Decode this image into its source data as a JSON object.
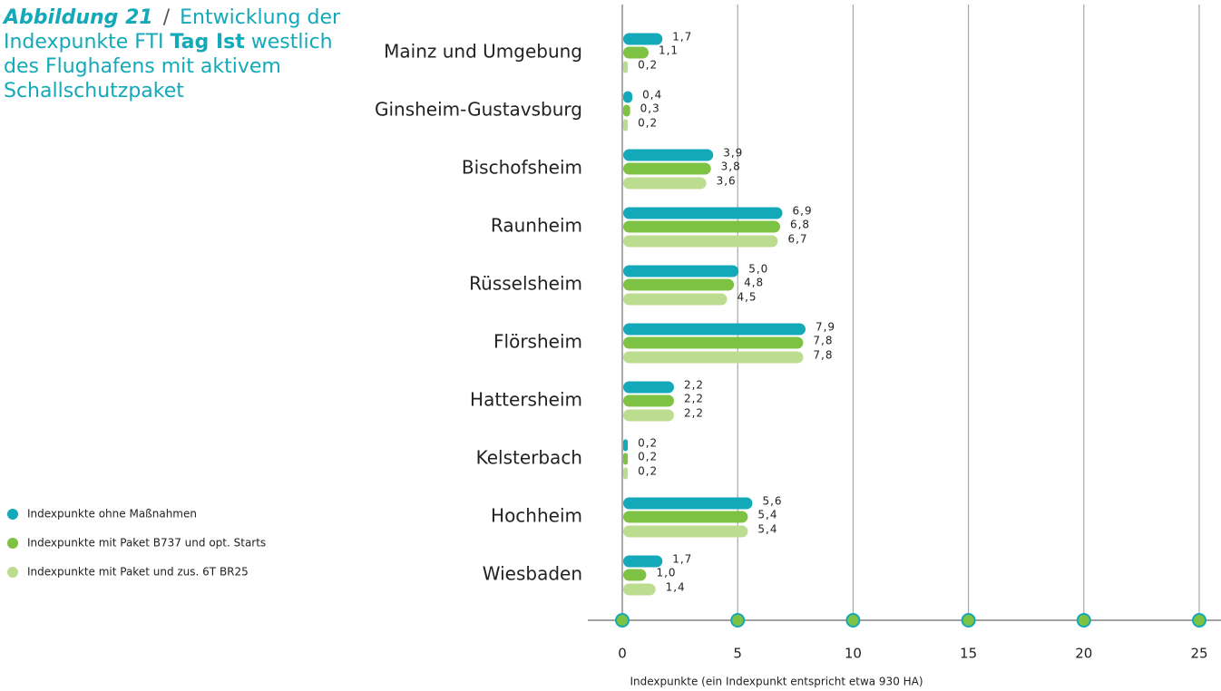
{
  "chart_data": {
    "type": "bar",
    "orientation": "horizontal",
    "title_parts": [
      "Abbildung 21",
      "/",
      "Entwicklung der Indexpunkte FTI",
      "Tag Ist",
      "westlich des Flughafens mit aktivem Schallschutzpaket"
    ],
    "categories": [
      "Mainz und Umgebung",
      "Ginsheim-Gustavsburg",
      "Bischofsheim",
      "Raunheim",
      "Rüsselsheim",
      "Flörsheim",
      "Hattersheim",
      "Kelsterbach",
      "Hochheim",
      "Wiesbaden"
    ],
    "series": [
      {
        "name": "Indexpunkte ohne Maßnahmen",
        "color": "#14a9b8",
        "values": [
          1.7,
          0.4,
          3.9,
          6.9,
          5.0,
          7.9,
          2.2,
          0.2,
          5.6,
          1.7
        ],
        "value_labels": [
          "1,7",
          "0,4",
          "3,9",
          "6,9",
          "5,0",
          "7,9",
          "2,2",
          "0,2",
          "5,6",
          "1,7"
        ]
      },
      {
        "name": "Indexpunkte mit Paket B737 und opt. Starts",
        "color": "#7dc242",
        "values": [
          1.1,
          0.3,
          3.8,
          6.8,
          4.8,
          7.8,
          2.2,
          0.2,
          5.4,
          1.0
        ],
        "value_labels": [
          "1,1",
          "0,3",
          "3,8",
          "6,8",
          "4,8",
          "7,8",
          "2,2",
          "0,2",
          "5,4",
          "1,0"
        ]
      },
      {
        "name": "Indexpunkte mit Paket und zus. 6T BR25",
        "color": "#bcdc8f",
        "values": [
          0.2,
          0.2,
          3.6,
          6.7,
          4.5,
          7.8,
          2.2,
          0.2,
          5.4,
          1.4
        ],
        "value_labels": [
          "0,2",
          "0,2",
          "3,6",
          "6,7",
          "4,5",
          "7,8",
          "2,2",
          "0,2",
          "5,4",
          "1,4"
        ]
      }
    ],
    "xlabel": "Indexpunkte (ein Indexpunkt entspricht etwa 930 HA)",
    "xlim": [
      0,
      25
    ],
    "xticks": [
      0,
      5,
      10,
      15,
      20,
      25
    ],
    "grid": true
  }
}
